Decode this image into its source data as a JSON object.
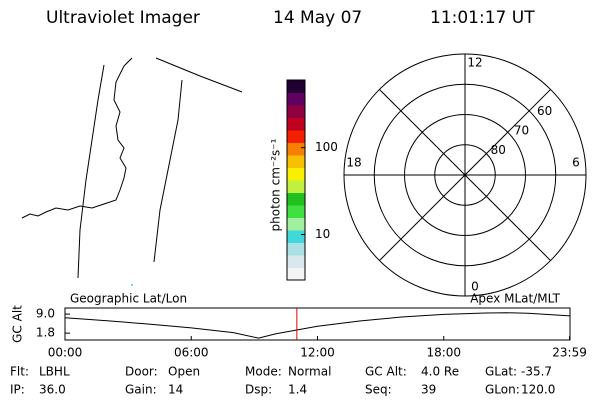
{
  "header": {
    "instrument": "Ultraviolet Imager",
    "date": "14 May 07",
    "time": "11:01:17 UT"
  },
  "colorbar": {
    "label": "photon cm⁻²s⁻¹",
    "scale": "log",
    "lim": [
      3,
      600
    ],
    "ticks": [
      10,
      100
    ],
    "colors": [
      "#f4f4f4",
      "#d8e8ec",
      "#a8e0e4",
      "#40d8d8",
      "#a0f0a0",
      "#40e040",
      "#20c020",
      "#c0f040",
      "#f8f000",
      "#f8c000",
      "#f88000",
      "#f02000",
      "#c00020",
      "#900040",
      "#600060",
      "#200030"
    ]
  },
  "polar": {
    "rlim": [
      90,
      50
    ],
    "lat_rings": [
      80,
      70,
      60
    ],
    "mlt_ticks": [
      12,
      18,
      6,
      0
    ]
  },
  "altitude": {
    "left_label": "Geographic Lat/Lon",
    "right_label": "Apex MLat/MLT",
    "ylabel": "GC Alt",
    "ylim": [
      -0.8,
      11.3
    ],
    "yticks": [
      {
        "value": 9,
        "label": "9.0"
      },
      1.8
    ],
    "xlim": [
      0,
      24
    ],
    "xticks": [
      {
        "value": 0,
        "label": "00:00"
      },
      {
        "value": 6,
        "label": "06:00"
      },
      {
        "value": 12,
        "label": "12:00"
      },
      {
        "value": 18,
        "label": "18:00"
      },
      {
        "value": 23.98,
        "label": "23:59"
      }
    ],
    "x": [
      0,
      2,
      4,
      6,
      8,
      9.2,
      10,
      12,
      14,
      16,
      18,
      20,
      21,
      22,
      24
    ],
    "values": [
      7.6,
      6.5,
      5.2,
      3.8,
      2.0,
      -0.1,
      1.5,
      4.4,
      6.4,
      7.9,
      8.9,
      9.4,
      9.5,
      9.3,
      8.3
    ],
    "current_time": 11.02,
    "marker_color": "#e00000"
  },
  "info": [
    [
      {
        "label": "Flt:",
        "value": "LBHL"
      },
      {
        "label": "Door:",
        "value": "Open"
      },
      {
        "label": "Mode:",
        "value": "Normal"
      },
      {
        "label": "GC Alt:",
        "value": "4.0 Re"
      },
      {
        "label": "GLat:",
        "value": "-35.7"
      }
    ],
    [
      {
        "label": "IP:",
        "value": "36.0"
      },
      {
        "label": "Gain:",
        "value": "14"
      },
      {
        "label": "Dsp:",
        "value": "1.4"
      },
      {
        "label": "Seq:",
        "value": "39"
      },
      {
        "label": "GLon:",
        "value": "120.0"
      }
    ]
  ]
}
